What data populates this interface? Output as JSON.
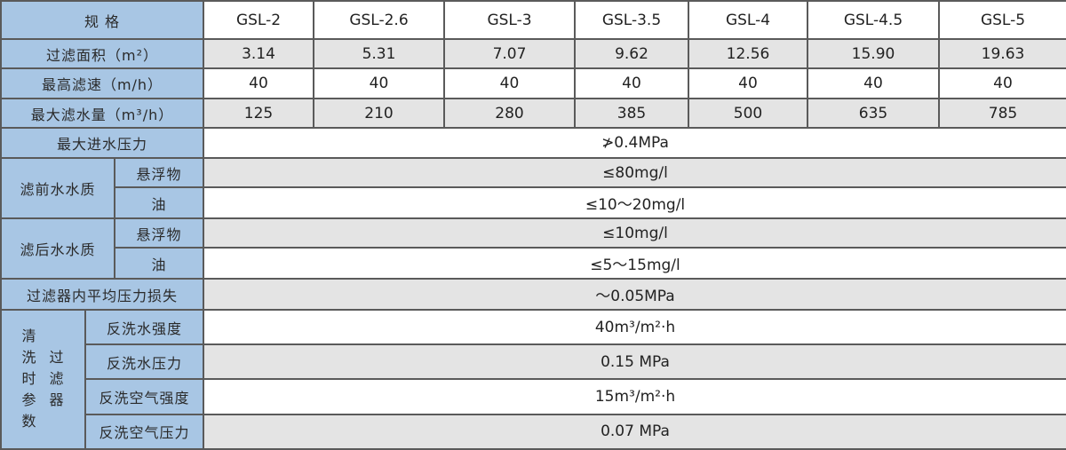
{
  "header": {
    "label": "规  格",
    "models": [
      "GSL-2",
      "GSL-2.6",
      "GSL-3",
      "GSL-3.5",
      "GSL-4",
      "GSL-4.5",
      "GSL-5"
    ]
  },
  "rows_per_model": [
    {
      "label": "过滤面积（m²）",
      "values": [
        "3.14",
        "5.31",
        "7.07",
        "9.62",
        "12.56",
        "15.90",
        "19.63"
      ]
    },
    {
      "label": "最高滤速（m/h）",
      "values": [
        "40",
        "40",
        "40",
        "40",
        "40",
        "40",
        "40"
      ]
    },
    {
      "label": "最大滤水量（m³/h）",
      "values": [
        "125",
        "210",
        "280",
        "385",
        "500",
        "635",
        "785"
      ]
    }
  ],
  "max_inlet_pressure": {
    "label": "最大进水压力",
    "value": "≯0.4MPa"
  },
  "before_filter": {
    "label": "滤前水水质",
    "items": [
      {
        "label": "悬浮物",
        "value": "≤80mg/l"
      },
      {
        "label": "油",
        "value": "≤10～20mg/l"
      }
    ]
  },
  "after_filter": {
    "label": "滤后水水质",
    "items": [
      {
        "label": "悬浮物",
        "value": "≤10mg/l"
      },
      {
        "label": "油",
        "value": "≤5～15mg/l"
      }
    ]
  },
  "pressure_loss": {
    "label": "过滤器内平均压力损失",
    "value": "～0.05MPa"
  },
  "cleaning": {
    "label_col1": [
      "清",
      "洗",
      "时",
      "参",
      "数"
    ],
    "label_col2": [
      "过",
      "滤",
      "器"
    ],
    "items": [
      {
        "label": "反洗水强度",
        "value": "40m³/m²·h"
      },
      {
        "label": "反洗水压力",
        "value": "0.15 MPa"
      },
      {
        "label": "反洗空气强度",
        "value": "15m³/m²·h"
      },
      {
        "label": "反洗空气压力",
        "value": "0.07 MPa"
      }
    ]
  }
}
